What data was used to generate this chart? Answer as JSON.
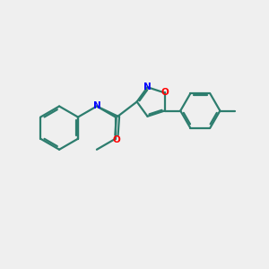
{
  "background_color": "#efefef",
  "bond_color": "#2d7d6e",
  "N_color": "#0000ff",
  "O_color": "#ff0000",
  "line_width": 1.6,
  "fig_size": [
    3.0,
    3.0
  ],
  "dpi": 100,
  "xlim": [
    0,
    10
  ],
  "ylim": [
    0,
    10
  ]
}
